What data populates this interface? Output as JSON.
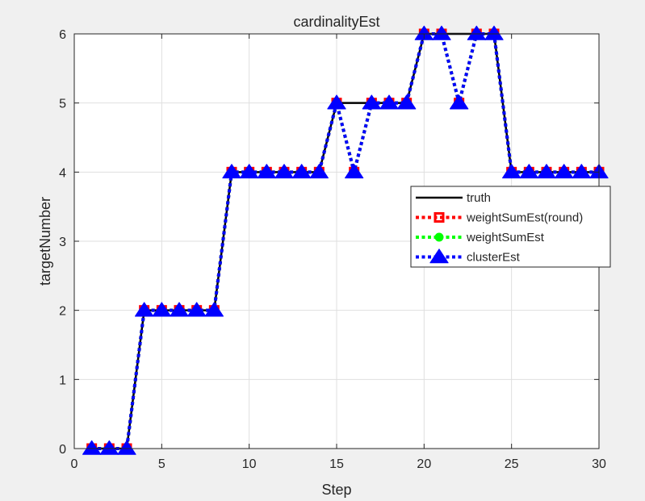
{
  "chart_data": {
    "type": "line",
    "title": "cardinalityEst",
    "xlabel": "Step",
    "ylabel": "targetNumber",
    "xlim": [
      0,
      30
    ],
    "ylim": [
      0,
      6
    ],
    "xticks": [
      0,
      5,
      10,
      15,
      20,
      25,
      30
    ],
    "yticks": [
      0,
      1,
      2,
      3,
      4,
      5,
      6
    ],
    "grid": true,
    "legend_position": "right",
    "x": [
      1,
      2,
      3,
      4,
      5,
      6,
      7,
      8,
      9,
      10,
      11,
      12,
      13,
      14,
      15,
      16,
      17,
      18,
      19,
      20,
      21,
      22,
      23,
      24,
      25,
      26,
      27,
      28,
      29,
      30
    ],
    "series": [
      {
        "name": "truth",
        "color": "#000000",
        "line_style": "solid",
        "marker": "none",
        "values": [
          0,
          0,
          0,
          2,
          2,
          2,
          2,
          2,
          4,
          4,
          4,
          4,
          4,
          4,
          5,
          5,
          5,
          5,
          5,
          6,
          6,
          6,
          6,
          6,
          4,
          4,
          4,
          4,
          4,
          4
        ]
      },
      {
        "name": "weightSumEst(round)",
        "color": "#ff0000",
        "line_style": "dotted",
        "marker": "square",
        "values": [
          0,
          0,
          0,
          2,
          2,
          2,
          2,
          2,
          4,
          4,
          4,
          4,
          4,
          4,
          5,
          4,
          5,
          5,
          5,
          6,
          6,
          5,
          6,
          6,
          4,
          4,
          4,
          4,
          4,
          4
        ]
      },
      {
        "name": "weightSumEst",
        "color": "#00ff00",
        "line_style": "dotted",
        "marker": "circle",
        "values": [
          0,
          0,
          0,
          2,
          2,
          2,
          2,
          2,
          4,
          4,
          4,
          4,
          4,
          4,
          5,
          4,
          5,
          5,
          5,
          6,
          6,
          5,
          6,
          6,
          4,
          4,
          4,
          4,
          4,
          4
        ]
      },
      {
        "name": "clusterEst",
        "color": "#0000ff",
        "line_style": "dotted",
        "marker": "triangle",
        "values": [
          0,
          0,
          0,
          2,
          2,
          2,
          2,
          2,
          4,
          4,
          4,
          4,
          4,
          4,
          5,
          4,
          5,
          5,
          5,
          6,
          6,
          5,
          6,
          6,
          4,
          4,
          4,
          4,
          4,
          4
        ]
      }
    ]
  }
}
